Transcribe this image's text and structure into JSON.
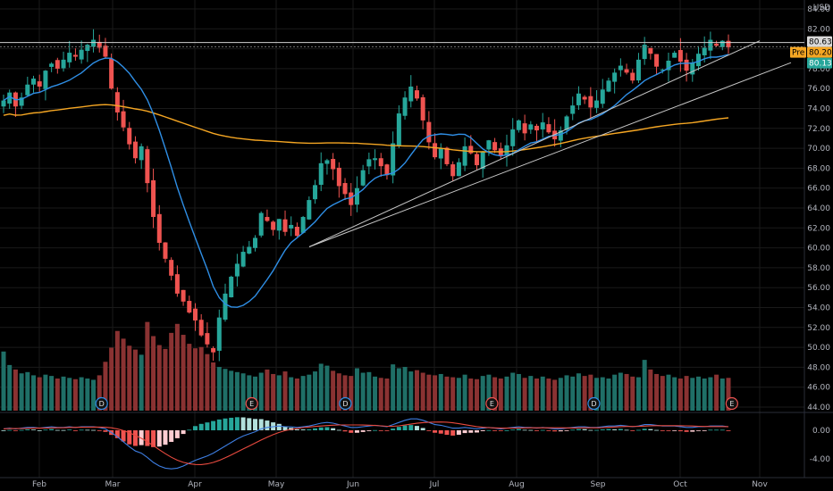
{
  "chart_data": {
    "type": "candlestick",
    "currency_label": "USD",
    "colors": {
      "up": "#26a69a",
      "down": "#ef5350",
      "vol_up": "#1f6f67",
      "vol_down": "#8a3232",
      "ma_fast": "#2f8fe6",
      "ma_slow": "#f5a623",
      "trendline": "#c8c8c8",
      "resistance": "#d0d0d0",
      "pre_tag": "#f5a623",
      "last_tag": "#26a69a",
      "macd_line": "#3d7de0",
      "signal_line": "#e84a3f",
      "earnings_badge": "#ef5350",
      "dividend_badge": "#2f8fe6",
      "grid": "#1a1a1a",
      "separator": "#2a2e39",
      "text": "#b2b5be"
    },
    "price_axis": {
      "min": 44,
      "max": 84,
      "ticks": [
        "84.00",
        "82.00",
        "80.00",
        "78.00",
        "76.00",
        "74.00",
        "72.00",
        "70.00",
        "68.00",
        "66.00",
        "64.00",
        "62.00",
        "60.00",
        "58.00",
        "56.00",
        "54.00",
        "52.00",
        "50.00",
        "48.00",
        "46.00",
        "44.00"
      ]
    },
    "time_axis": {
      "labels": [
        "Feb",
        "Mar",
        "Apr",
        "May",
        "Jun",
        "Jul",
        "Aug",
        "Sep",
        "Oct",
        "Nov"
      ]
    },
    "price_tags": {
      "resistance": "80.63",
      "pre_label": "Pre",
      "pre_value": "80.20",
      "last_value": "80.13"
    },
    "events": [
      {
        "label": "D",
        "kind": "dividend",
        "month": "Feb",
        "offset": 0.85
      },
      {
        "label": "E",
        "kind": "earnings",
        "month": "Apr",
        "offset": 0.7
      },
      {
        "label": "D",
        "kind": "dividend",
        "month": "May",
        "offset": 0.9
      },
      {
        "label": "E",
        "kind": "earnings",
        "month": "Jul",
        "offset": 0.7
      },
      {
        "label": "D",
        "kind": "dividend",
        "month": "Aug",
        "offset": 0.95
      },
      {
        "label": "E",
        "kind": "earnings",
        "month": "Oct",
        "offset": 0.65
      }
    ],
    "macd_axis": {
      "min": -6,
      "max": 2,
      "ticks": [
        "0.00",
        "-4.00"
      ]
    },
    "series_close": [
      74.8,
      75.6,
      74.2,
      75.1,
      76.4,
      77.0,
      76.2,
      77.8,
      78.5,
      78.0,
      78.9,
      79.6,
      79.2,
      79.9,
      80.4,
      80.9,
      80.1,
      79.2,
      76.0,
      73.6,
      72.1,
      70.4,
      69.0,
      70.2,
      66.5,
      63.1,
      60.5,
      58.9,
      57.2,
      55.4,
      54.6,
      53.5,
      52.7,
      51.2,
      50.3,
      49.5,
      53.0,
      55.4,
      57.1,
      58.4,
      59.6,
      60.1,
      61.0,
      63.5,
      62.7,
      61.8,
      62.9,
      61.6,
      62.3,
      61.2,
      63.1,
      64.8,
      66.3,
      68.5,
      68.8,
      67.9,
      66.2,
      65.4,
      64.3,
      66.0,
      67.8,
      68.9,
      69.0,
      68.2,
      67.3,
      70.5,
      73.5,
      75.1,
      76.2,
      75.0,
      72.8,
      70.6,
      69.1,
      70.0,
      68.4,
      67.2,
      68.6,
      70.2,
      69.5,
      68.3,
      69.6,
      70.8,
      69.8,
      69.2,
      70.3,
      71.9,
      72.8,
      71.5,
      72.4,
      71.8,
      72.6,
      71.6,
      70.9,
      71.8,
      73.2,
      74.3,
      75.5,
      74.9,
      74.1,
      74.8,
      75.9,
      76.8,
      77.6,
      78.3,
      77.6,
      76.8,
      78.9,
      80.4,
      79.5,
      78.2,
      77.9,
      78.8,
      79.6,
      78.7,
      77.8,
      78.6,
      79.5,
      80.1,
      80.9,
      80.3,
      80.8,
      80.13
    ],
    "series_volume": [
      9.2,
      7.1,
      6.4,
      5.8,
      6.0,
      5.5,
      5.2,
      5.6,
      5.4,
      5.0,
      5.3,
      5.1,
      4.9,
      5.2,
      5.0,
      4.8,
      5.5,
      7.6,
      9.8,
      12.4,
      11.2,
      10.1,
      9.5,
      8.7,
      13.8,
      11.6,
      10.2,
      9.6,
      12.1,
      13.5,
      11.8,
      10.4,
      9.7,
      9.9,
      8.8,
      7.5,
      6.8,
      6.5,
      6.2,
      6.0,
      5.8,
      5.5,
      5.3,
      5.9,
      6.4,
      5.7,
      5.5,
      6.1,
      5.2,
      5.0,
      5.4,
      5.6,
      6.1,
      7.3,
      7.0,
      6.2,
      5.8,
      5.5,
      5.4,
      6.6,
      5.9,
      6.0,
      5.3,
      5.1,
      5.0,
      7.2,
      6.6,
      6.8,
      6.1,
      6.3,
      5.9,
      5.6,
      5.5,
      5.7,
      5.3,
      5.2,
      5.1,
      5.6,
      5.0,
      4.9,
      5.4,
      5.6,
      5.2,
      5.0,
      5.3,
      5.9,
      5.7,
      5.1,
      5.4,
      5.0,
      5.3,
      5.0,
      4.8,
      5.1,
      5.5,
      5.3,
      5.8,
      5.4,
      5.6,
      5.1,
      5.2,
      5.0,
      5.6,
      5.9,
      5.7,
      5.3,
      5.2,
      7.9,
      6.4,
      5.7,
      5.4,
      5.6,
      5.2,
      5.0,
      5.4,
      5.1,
      5.3,
      5.0,
      5.2,
      5.6,
      5.0,
      5.1
    ],
    "series_macd": [
      0.2,
      0.3,
      0.2,
      0.3,
      0.4,
      0.4,
      0.3,
      0.4,
      0.5,
      0.4,
      0.4,
      0.5,
      0.4,
      0.5,
      0.5,
      0.5,
      0.4,
      0.2,
      -0.3,
      -0.9,
      -1.6,
      -2.3,
      -2.9,
      -3.2,
      -3.8,
      -4.5,
      -5.0,
      -5.3,
      -5.4,
      -5.3,
      -5.0,
      -4.6,
      -4.2,
      -3.9,
      -3.6,
      -3.2,
      -2.7,
      -2.2,
      -1.7,
      -1.2,
      -0.8,
      -0.5,
      -0.2,
      0.2,
      0.4,
      0.5,
      0.6,
      0.5,
      0.5,
      0.4,
      0.5,
      0.6,
      0.8,
      1.0,
      1.1,
      1.0,
      0.8,
      0.6,
      0.4,
      0.4,
      0.5,
      0.6,
      0.7,
      0.6,
      0.5,
      0.8,
      1.1,
      1.4,
      1.6,
      1.6,
      1.4,
      1.1,
      0.8,
      0.7,
      0.5,
      0.3,
      0.3,
      0.4,
      0.3,
      0.2,
      0.3,
      0.4,
      0.3,
      0.2,
      0.3,
      0.4,
      0.5,
      0.4,
      0.4,
      0.3,
      0.4,
      0.3,
      0.2,
      0.2,
      0.3,
      0.4,
      0.5,
      0.5,
      0.4,
      0.4,
      0.5,
      0.6,
      0.6,
      0.7,
      0.6,
      0.5,
      0.6,
      0.8,
      0.8,
      0.7,
      0.6,
      0.6,
      0.6,
      0.5,
      0.4,
      0.4,
      0.5,
      0.5,
      0.6,
      0.6,
      0.6,
      0.5
    ]
  }
}
